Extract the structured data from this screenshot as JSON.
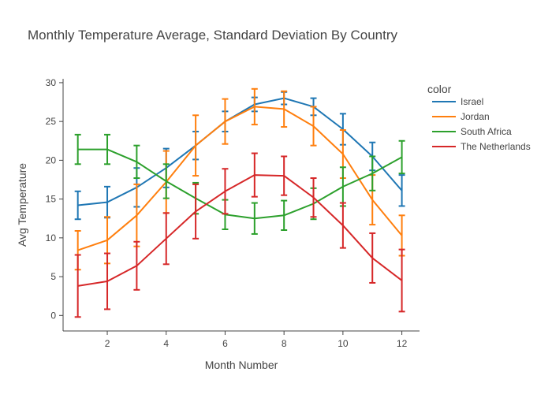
{
  "chart_data": {
    "type": "line",
    "title": "Monthly Temperature Average, Standard Deviation By Country",
    "xlabel": "Month Number",
    "ylabel": "Avg Temperature",
    "xlim": [
      0.5,
      12.6
    ],
    "ylim": [
      -2,
      30.5
    ],
    "xticks": [
      2,
      4,
      6,
      8,
      10,
      12
    ],
    "yticks": [
      0,
      5,
      10,
      15,
      20,
      25,
      30
    ],
    "grid": false,
    "legend": {
      "title": "color",
      "position": "right"
    },
    "x": [
      1,
      2,
      3,
      4,
      5,
      6,
      7,
      8,
      9,
      10,
      11,
      12
    ],
    "series": [
      {
        "name": "Israel",
        "color": "#1f77b4",
        "values": [
          14.2,
          14.6,
          16.5,
          19.0,
          21.9,
          25.0,
          27.2,
          28.0,
          26.9,
          24.0,
          20.5,
          16.1
        ],
        "errors": [
          1.8,
          2.0,
          2.5,
          2.5,
          1.8,
          1.3,
          0.9,
          0.8,
          1.1,
          2.0,
          1.8,
          2.0
        ]
      },
      {
        "name": "Jordan",
        "color": "#ff7f0e",
        "values": [
          8.4,
          9.7,
          12.9,
          17.2,
          21.9,
          25.0,
          26.9,
          26.6,
          24.4,
          20.8,
          14.9,
          10.3
        ],
        "errors": [
          2.5,
          3.0,
          4.0,
          4.0,
          3.9,
          2.9,
          2.3,
          2.3,
          2.5,
          3.1,
          3.2,
          2.6
        ]
      },
      {
        "name": "South Africa",
        "color": "#2ca02c",
        "values": [
          21.4,
          21.4,
          19.8,
          17.3,
          15.1,
          13.0,
          12.5,
          12.9,
          14.4,
          16.6,
          18.3,
          20.4
        ],
        "errors": [
          1.9,
          1.9,
          2.1,
          2.2,
          2.0,
          1.9,
          2.0,
          1.9,
          2.0,
          2.5,
          2.2,
          2.1
        ]
      },
      {
        "name": "The Netherlands",
        "color": "#d62728",
        "values": [
          3.8,
          4.4,
          6.4,
          9.9,
          13.4,
          16.0,
          18.1,
          18.0,
          15.2,
          11.6,
          7.4,
          4.5
        ],
        "errors": [
          4.0,
          3.6,
          3.1,
          3.3,
          3.5,
          2.9,
          2.8,
          2.5,
          2.5,
          2.9,
          3.2,
          4.0
        ]
      }
    ]
  }
}
